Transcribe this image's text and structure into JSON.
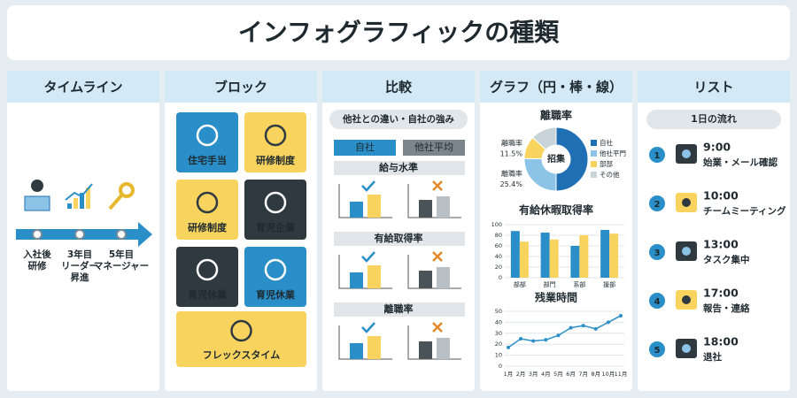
{
  "title": "インフォグラフィックの種類",
  "panels": {
    "timeline": {
      "title": "タイムライン",
      "events": [
        {
          "lines": [
            "入社後",
            "研修"
          ]
        },
        {
          "lines": [
            "3年目",
            "リーダー",
            "昇進"
          ]
        },
        {
          "lines": [
            "5年目",
            "マネージャー"
          ]
        }
      ]
    },
    "blocks": {
      "title": "ブロック",
      "items": [
        {
          "label": "住宅手当",
          "color": "#2a8fc9"
        },
        {
          "label": "研修制度",
          "color": "#f8d35e"
        },
        {
          "label": "研修制度",
          "color": "#f8d35e"
        },
        {
          "label": "育児企業",
          "color": "#2f3a40"
        },
        {
          "label": "育児休業",
          "color": "#2f3a40"
        },
        {
          "label": "育児休業",
          "color": "#2a8fc9"
        },
        {
          "label": "フレックスタイム",
          "color": "#f8d35e"
        }
      ]
    },
    "comparison": {
      "title": "比較",
      "subtitle": "他社との違い・自社の強み",
      "legend": [
        "自社",
        "他社平均"
      ],
      "sections": [
        "給与水準",
        "有給取得率",
        "離職率"
      ]
    },
    "graphs": {
      "title": "グラフ（円・棒・線）",
      "pie": {
        "type": "pie",
        "title": "離職率",
        "center_label": "招集",
        "callout_prefix": "離職率",
        "categories": [
          "自社",
          "他社平門",
          "部部",
          "その他"
        ],
        "values": [
          50,
          25.4,
          11.5,
          13.1
        ],
        "value_labels": [
          null,
          "25.4%",
          "11.5%",
          null
        ],
        "colors": [
          "#1f6fb5",
          "#8cc4e8",
          "#f8d35e",
          "#c9d3da"
        ]
      },
      "bar": {
        "type": "bar",
        "title": "有給休暇取得率",
        "categories": [
          "部部",
          "部門",
          "系部",
          "援部"
        ],
        "series": [
          {
            "color": "#2a8fc9",
            "values": [
              88,
              85,
              60,
              90
            ]
          },
          {
            "color": "#f8d35e",
            "values": [
              68,
              72,
              80,
              83
            ]
          }
        ],
        "ylim": [
          0,
          100
        ],
        "yticks": [
          0,
          20,
          40,
          60,
          80,
          100
        ],
        "grid": true
      },
      "line": {
        "type": "line",
        "title": "残業時間",
        "categories": [
          "1月",
          "2月",
          "3月",
          "4月",
          "5月",
          "6月",
          "7月",
          "8月",
          "10月",
          "11月"
        ],
        "values": [
          17,
          25,
          23,
          24,
          28,
          35,
          37,
          34,
          40,
          46
        ],
        "color": "#2a8fc9",
        "ylim": [
          0,
          50
        ],
        "yticks": [
          0,
          10,
          20,
          30,
          40,
          50
        ],
        "grid": true
      }
    },
    "list": {
      "title": "リスト",
      "subtitle": "1日の流れ",
      "items": [
        {
          "number": 1,
          "time": "9:00",
          "text": "始業・メール確認"
        },
        {
          "number": 2,
          "time": "10:00",
          "text": "チームミーティング"
        },
        {
          "number": 3,
          "time": "13:00",
          "text": "タスク集中"
        },
        {
          "number": 4,
          "time": "17:00",
          "text": "報告・連絡"
        },
        {
          "number": 5,
          "time": "18:00",
          "text": "退社"
        }
      ]
    }
  }
}
